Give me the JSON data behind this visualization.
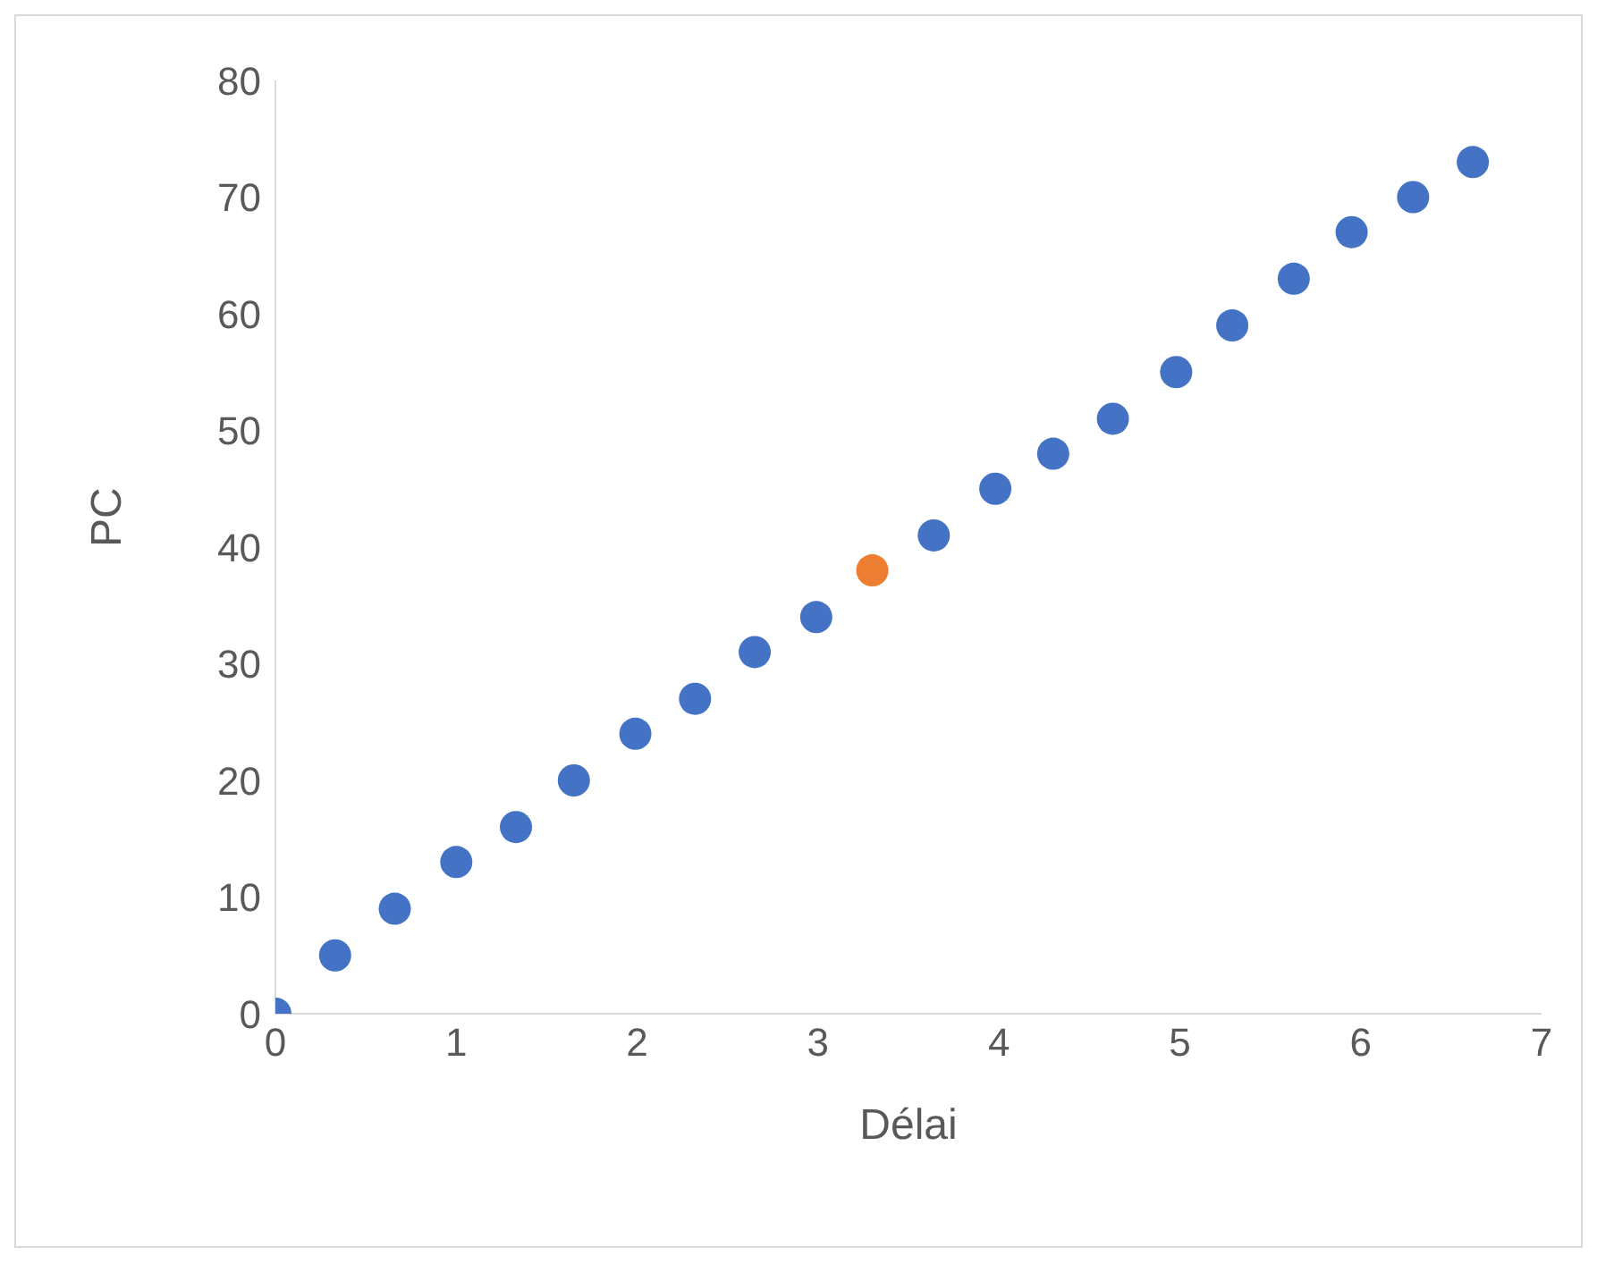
{
  "chart_data": {
    "type": "scatter",
    "xlabel": "Délai",
    "ylabel": "PC",
    "x": [
      0,
      0.33,
      0.66,
      1,
      1.33,
      1.65,
      1.99,
      2.32,
      2.65,
      2.99,
      3.3,
      3.64,
      3.98,
      4.3,
      4.63,
      4.98,
      5.29,
      5.63,
      5.95,
      6.29,
      6.62
    ],
    "values": [
      0,
      5,
      9,
      13,
      16,
      20,
      24,
      27,
      31,
      34,
      38,
      41,
      45,
      48,
      51,
      55,
      59,
      63,
      67,
      70,
      73
    ],
    "colors": [
      "#4472c4",
      "#4472c4",
      "#4472c4",
      "#4472c4",
      "#4472c4",
      "#4472c4",
      "#4472c4",
      "#4472c4",
      "#4472c4",
      "#4472c4",
      "#ed7d31",
      "#4472c4",
      "#4472c4",
      "#4472c4",
      "#4472c4",
      "#4472c4",
      "#4472c4",
      "#4472c4",
      "#4472c4",
      "#4472c4",
      "#4472c4"
    ],
    "xlim": [
      0,
      7
    ],
    "xticks": [
      0,
      1,
      2,
      3,
      4,
      5,
      6,
      7
    ],
    "ylim": [
      0,
      80
    ],
    "yticks": [
      0,
      10,
      20,
      30,
      40,
      50,
      60,
      70,
      80
    ],
    "grid": false,
    "legend": false,
    "marker": "circle"
  }
}
